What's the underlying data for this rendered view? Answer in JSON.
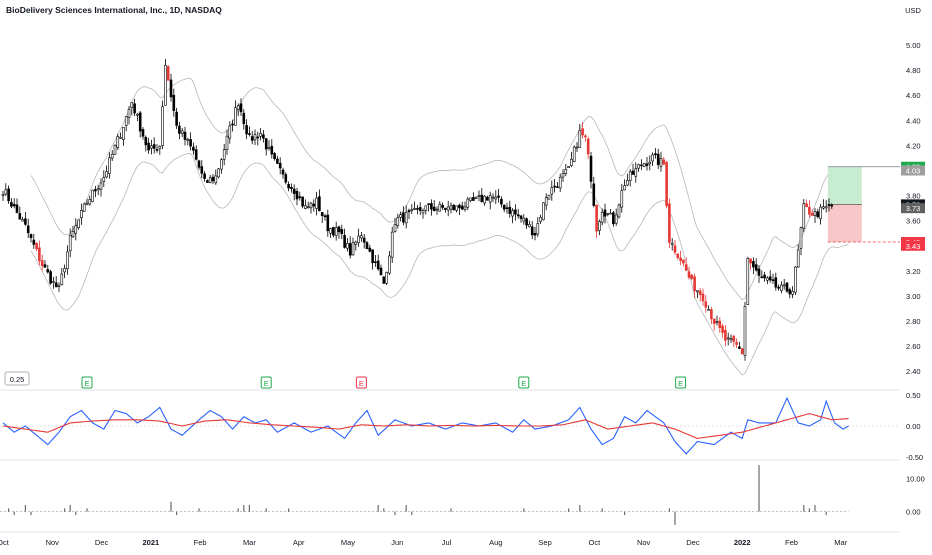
{
  "title": "BioDelivery Sciences International, Inc., 1D, NASDAQ",
  "currency": "USD",
  "indicator_value_box": "0.25",
  "colors": {
    "up": "#000000",
    "down_normal": "#000000",
    "down_red": "#e53935",
    "band": "#b8b8b8",
    "osc_fast": "#2962ff",
    "osc_slow": "#e53935",
    "profit_zone": "#c8ecd0",
    "loss_zone": "#f8c8c8",
    "target_badge": "#1fa94b",
    "stop_badge": "#f23645",
    "current_badge": "#131722",
    "earn_green": "#1fa94b",
    "earn_red": "#f23645"
  },
  "chart_data": [
    {
      "type": "candlestick",
      "title": "BioDelivery Sciences International, Inc., 1D, NASDAQ",
      "y_ticks": [
        "5.00",
        "4.80",
        "4.60",
        "4.40",
        "4.20",
        "4.00",
        "3.80",
        "3.60",
        "3.40",
        "3.20",
        "3.00",
        "2.80",
        "2.60",
        "2.40"
      ],
      "ylim": [
        2.33,
        5.12
      ],
      "x_labels": [
        "Oct",
        "Nov",
        "Dec",
        "2021",
        "Feb",
        "Mar",
        "Apr",
        "May",
        "Jun",
        "Jul",
        "Aug",
        "Sep",
        "Oct",
        "Nov",
        "Dec",
        "2022",
        "Feb",
        "Mar"
      ],
      "anchors": [
        [
          0,
          3.85
        ],
        [
          8,
          3.55
        ],
        [
          14,
          3.25
        ],
        [
          18,
          3.1
        ],
        [
          20,
          3.05
        ],
        [
          24,
          3.45
        ],
        [
          30,
          3.75
        ],
        [
          36,
          3.95
        ],
        [
          42,
          4.3
        ],
        [
          46,
          4.55
        ],
        [
          52,
          4.15
        ],
        [
          56,
          4.2
        ],
        [
          58,
          4.85
        ],
        [
          62,
          4.35
        ],
        [
          68,
          4.15
        ],
        [
          72,
          3.9
        ],
        [
          76,
          3.95
        ],
        [
          80,
          4.25
        ],
        [
          84,
          4.55
        ],
        [
          88,
          4.25
        ],
        [
          92,
          4.3
        ],
        [
          96,
          4.1
        ],
        [
          100,
          3.95
        ],
        [
          104,
          3.85
        ],
        [
          108,
          3.7
        ],
        [
          112,
          3.75
        ],
        [
          116,
          3.55
        ],
        [
          120,
          3.5
        ],
        [
          124,
          3.35
        ],
        [
          128,
          3.5
        ],
        [
          132,
          3.3
        ],
        [
          136,
          3.1
        ],
        [
          140,
          3.6
        ],
        [
          146,
          3.65
        ],
        [
          150,
          3.7
        ],
        [
          156,
          3.7
        ],
        [
          162,
          3.7
        ],
        [
          168,
          3.75
        ],
        [
          174,
          3.8
        ],
        [
          180,
          3.7
        ],
        [
          186,
          3.6
        ],
        [
          190,
          3.5
        ],
        [
          194,
          3.8
        ],
        [
          198,
          3.9
        ],
        [
          202,
          4.0
        ],
        [
          206,
          4.3
        ],
        [
          208,
          4.25
        ],
        [
          210,
          3.95
        ],
        [
          212,
          3.55
        ],
        [
          214,
          3.7
        ],
        [
          218,
          3.6
        ],
        [
          222,
          3.9
        ],
        [
          228,
          4.05
        ],
        [
          232,
          4.1
        ],
        [
          236,
          4.05
        ],
        [
          238,
          3.45
        ],
        [
          242,
          3.3
        ],
        [
          246,
          3.1
        ],
        [
          250,
          3.0
        ],
        [
          254,
          2.8
        ],
        [
          258,
          2.65
        ],
        [
          262,
          2.6
        ],
        [
          264,
          2.55
        ],
        [
          266,
          3.3
        ],
        [
          270,
          3.15
        ],
        [
          274,
          3.1
        ],
        [
          278,
          3.05
        ],
        [
          282,
          3.05
        ],
        [
          284,
          3.35
        ],
        [
          286,
          3.7
        ],
        [
          290,
          3.65
        ],
        [
          294,
          3.7
        ],
        [
          296,
          3.72
        ]
      ],
      "red_candle_ranges": [
        [
          12,
          14
        ],
        [
          36,
          38
        ],
        [
          58,
          59
        ],
        [
          206,
          209
        ],
        [
          212,
          214
        ],
        [
          236,
          262
        ],
        [
          264,
          267
        ],
        [
          286,
          290
        ]
      ],
      "bands": {
        "style": "envelope",
        "color": "#b8b8b8"
      },
      "position": {
        "type": "long",
        "entry": 3.73,
        "target": 4.03,
        "stop": 3.43
      },
      "price_badges": [
        {
          "label": "4.03",
          "value": 4.03,
          "color": "#1fa94b"
        },
        {
          "label": "4.03",
          "value": 4.0,
          "color": "#9e9e9e"
        },
        {
          "label": "3.73",
          "value": 3.73,
          "color": "#131722"
        },
        {
          "label": "3.73",
          "value": 3.7,
          "color": "#616161"
        },
        {
          "label": "3.43",
          "value": 3.43,
          "color": "#f23645"
        },
        {
          "label": "3.43",
          "value": 3.4,
          "color": "#f23645"
        }
      ],
      "earnings": [
        {
          "label": "E",
          "bar": 30,
          "color": "green"
        },
        {
          "label": "E",
          "bar": 94,
          "color": "green"
        },
        {
          "label": "E",
          "bar": 128,
          "color": "red"
        },
        {
          "label": "E",
          "bar": 186,
          "color": "green"
        },
        {
          "label": "E",
          "bar": 242,
          "color": "green"
        }
      ]
    },
    {
      "type": "line",
      "title": "",
      "y_ticks": [
        "0.50",
        "0.00",
        "-0.50"
      ],
      "ylim": [
        -0.5,
        0.5
      ],
      "series": [
        {
          "color": "#2962ff",
          "anchors": [
            [
              0,
              0.05
            ],
            [
              4,
              -0.1
            ],
            [
              8,
              0.0
            ],
            [
              12,
              -0.15
            ],
            [
              16,
              -0.3
            ],
            [
              20,
              -0.1
            ],
            [
              24,
              0.15
            ],
            [
              28,
              0.25
            ],
            [
              32,
              0.05
            ],
            [
              36,
              -0.05
            ],
            [
              40,
              0.25
            ],
            [
              44,
              0.2
            ],
            [
              48,
              0.05
            ],
            [
              52,
              0.15
            ],
            [
              56,
              0.3
            ],
            [
              60,
              -0.05
            ],
            [
              64,
              -0.15
            ],
            [
              70,
              0.1
            ],
            [
              74,
              0.25
            ],
            [
              78,
              0.15
            ],
            [
              82,
              -0.05
            ],
            [
              86,
              0.15
            ],
            [
              90,
              0.05
            ],
            [
              94,
              0.1
            ],
            [
              98,
              -0.1
            ],
            [
              104,
              0.05
            ],
            [
              110,
              -0.1
            ],
            [
              116,
              0.0
            ],
            [
              122,
              -0.2
            ],
            [
              126,
              0.05
            ],
            [
              130,
              0.25
            ],
            [
              134,
              -0.15
            ],
            [
              140,
              0.1
            ],
            [
              146,
              0.0
            ],
            [
              152,
              0.05
            ],
            [
              158,
              -0.05
            ],
            [
              164,
              0.05
            ],
            [
              170,
              0.0
            ],
            [
              176,
              0.05
            ],
            [
              182,
              -0.1
            ],
            [
              186,
              0.1
            ],
            [
              190,
              -0.05
            ],
            [
              196,
              0.0
            ],
            [
              202,
              0.1
            ],
            [
              206,
              0.3
            ],
            [
              210,
              -0.05
            ],
            [
              214,
              -0.3
            ],
            [
              218,
              -0.2
            ],
            [
              222,
              0.15
            ],
            [
              226,
              0.05
            ],
            [
              230,
              0.25
            ],
            [
              236,
              0.05
            ],
            [
              240,
              -0.25
            ],
            [
              244,
              -0.45
            ],
            [
              248,
              -0.25
            ],
            [
              254,
              -0.3
            ],
            [
              260,
              -0.1
            ],
            [
              264,
              -0.2
            ],
            [
              266,
              0.1
            ],
            [
              270,
              0.05
            ],
            [
              276,
              0.05
            ],
            [
              280,
              0.45
            ],
            [
              284,
              0.05
            ],
            [
              288,
              0.0
            ],
            [
              292,
              0.1
            ],
            [
              294,
              0.4
            ],
            [
              297,
              0.05
            ],
            [
              300,
              -0.05
            ],
            [
              302,
              0.0
            ]
          ]
        },
        {
          "color": "#e53935",
          "anchors": [
            [
              0,
              0.0
            ],
            [
              8,
              -0.05
            ],
            [
              16,
              -0.1
            ],
            [
              24,
              0.05
            ],
            [
              32,
              0.08
            ],
            [
              40,
              0.1
            ],
            [
              48,
              0.1
            ],
            [
              56,
              0.08
            ],
            [
              64,
              0.0
            ],
            [
              72,
              0.08
            ],
            [
              80,
              0.1
            ],
            [
              88,
              0.05
            ],
            [
              96,
              0.02
            ],
            [
              104,
              0.0
            ],
            [
              112,
              -0.02
            ],
            [
              120,
              -0.05
            ],
            [
              128,
              0.02
            ],
            [
              136,
              0.0
            ],
            [
              144,
              0.02
            ],
            [
              152,
              0.0
            ],
            [
              160,
              0.01
            ],
            [
              168,
              0.0
            ],
            [
              176,
              0.01
            ],
            [
              184,
              0.0
            ],
            [
              192,
              0.0
            ],
            [
              200,
              0.02
            ],
            [
              208,
              0.1
            ],
            [
              216,
              -0.05
            ],
            [
              224,
              0.0
            ],
            [
              232,
              0.05
            ],
            [
              240,
              -0.05
            ],
            [
              248,
              -0.2
            ],
            [
              256,
              -0.15
            ],
            [
              264,
              -0.1
            ],
            [
              272,
              0.0
            ],
            [
              280,
              0.1
            ],
            [
              288,
              0.2
            ],
            [
              296,
              0.1
            ],
            [
              302,
              0.12
            ]
          ]
        }
      ]
    },
    {
      "type": "bar",
      "title": "",
      "y_ticks": [
        "10.00",
        "0.00"
      ],
      "ylim": [
        -4,
        14
      ],
      "spikes": [
        [
          2,
          1
        ],
        [
          4,
          -1
        ],
        [
          8,
          2
        ],
        [
          10,
          -1
        ],
        [
          22,
          1
        ],
        [
          24,
          2
        ],
        [
          26,
          -1
        ],
        [
          30,
          1
        ],
        [
          60,
          3
        ],
        [
          62,
          -1
        ],
        [
          70,
          1
        ],
        [
          84,
          1
        ],
        [
          86,
          2
        ],
        [
          88,
          2
        ],
        [
          94,
          1
        ],
        [
          102,
          1
        ],
        [
          134,
          2
        ],
        [
          136,
          1
        ],
        [
          140,
          -1
        ],
        [
          144,
          2
        ],
        [
          146,
          -1
        ],
        [
          160,
          1
        ],
        [
          186,
          1
        ],
        [
          202,
          1
        ],
        [
          206,
          2
        ],
        [
          214,
          1
        ],
        [
          222,
          -1
        ],
        [
          238,
          1
        ],
        [
          240,
          -4
        ],
        [
          270,
          14
        ],
        [
          286,
          2
        ],
        [
          288,
          1
        ],
        [
          290,
          2
        ],
        [
          294,
          -1
        ]
      ]
    }
  ]
}
